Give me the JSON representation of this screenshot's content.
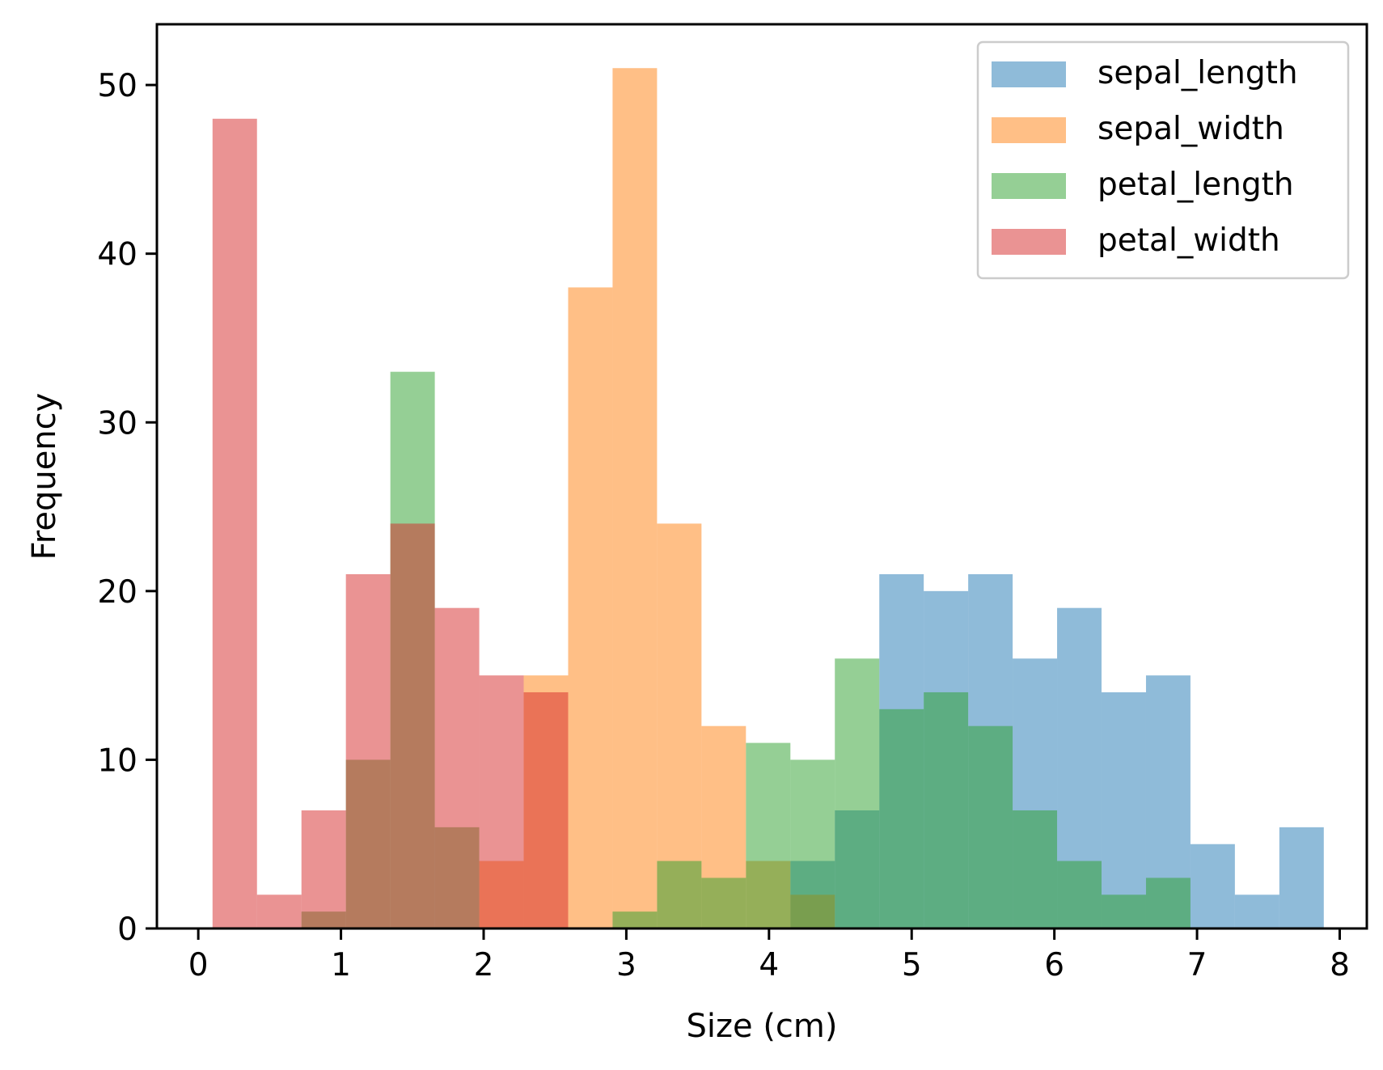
{
  "chart_data": {
    "type": "histogram",
    "xlabel": "Size (cm)",
    "ylabel": "Frequency",
    "xlim": [
      -0.29,
      8.19
    ],
    "ylim": [
      0,
      53.6
    ],
    "xticks": [
      0,
      1,
      2,
      3,
      4,
      5,
      6,
      7,
      8
    ],
    "yticks": [
      0,
      10,
      20,
      30,
      40,
      50
    ],
    "bins": 26,
    "alpha": 0.5,
    "grid": false,
    "legend_position": "upper right",
    "series": [
      {
        "name": "sepal_length",
        "color": "#1f77b4",
        "bin_edges": [
          0.1,
          0.4115,
          0.7231,
          1.0346,
          1.3462,
          1.6577,
          1.9692,
          2.2808,
          2.5923,
          2.9038,
          3.2154,
          3.5269,
          3.8385,
          4.15,
          4.4615,
          4.7731,
          5.0846,
          5.3962,
          5.7077,
          6.0192,
          6.3308,
          6.6423,
          6.9538,
          7.2654,
          7.5769,
          7.8885
        ],
        "counts": [
          0,
          0,
          0,
          0,
          0,
          0,
          0,
          0,
          0,
          0,
          0,
          0,
          0,
          4,
          7,
          21,
          20,
          21,
          16,
          19,
          14,
          15,
          5,
          2,
          6
        ]
      },
      {
        "name": "sepal_width",
        "color": "#ff7f0e",
        "bin_edges": [
          0.1,
          0.4115,
          0.7231,
          1.0346,
          1.3462,
          1.6577,
          1.9692,
          2.2808,
          2.5923,
          2.9038,
          3.2154,
          3.5269,
          3.8385,
          4.15,
          4.4615,
          4.7731,
          5.0846,
          5.3962,
          5.7077,
          6.0192,
          6.3308,
          6.6423,
          6.9538,
          7.2654,
          7.5769,
          7.8885
        ],
        "counts": [
          0,
          0,
          0,
          0,
          0,
          0,
          4,
          15,
          38,
          51,
          24,
          12,
          4,
          2,
          0,
          0,
          0,
          0,
          0,
          0,
          0,
          0,
          0,
          0,
          0
        ]
      },
      {
        "name": "petal_length",
        "color": "#2ca02c",
        "bin_edges": [
          0.1,
          0.4115,
          0.7231,
          1.0346,
          1.3462,
          1.6577,
          1.9692,
          2.2808,
          2.5923,
          2.9038,
          3.2154,
          3.5269,
          3.8385,
          4.15,
          4.4615,
          4.7731,
          5.0846,
          5.3962,
          5.7077,
          6.0192,
          6.3308,
          6.6423,
          6.9538,
          7.2654,
          7.5769,
          7.8885
        ],
        "counts": [
          0,
          0,
          1,
          10,
          33,
          6,
          0,
          0,
          0,
          1,
          4,
          3,
          11,
          10,
          16,
          13,
          14,
          12,
          7,
          4,
          2,
          3,
          0,
          0,
          0
        ]
      },
      {
        "name": "petal_width",
        "color": "#d62728",
        "bin_edges": [
          0.1,
          0.4115,
          0.7231,
          1.0346,
          1.3462,
          1.6577,
          1.9692,
          2.2808,
          2.5923,
          2.9038,
          3.2154,
          3.5269,
          3.8385,
          4.15,
          4.4615,
          4.7731,
          5.0846,
          5.3962,
          5.7077,
          6.0192,
          6.3308,
          6.6423,
          6.9538,
          7.2654,
          7.5769,
          7.8885
        ],
        "counts": [
          48,
          2,
          7,
          21,
          24,
          19,
          15,
          14,
          0,
          0,
          0,
          0,
          0,
          0,
          0,
          0,
          0,
          0,
          0,
          0,
          0,
          0,
          0,
          0,
          0
        ]
      }
    ]
  }
}
